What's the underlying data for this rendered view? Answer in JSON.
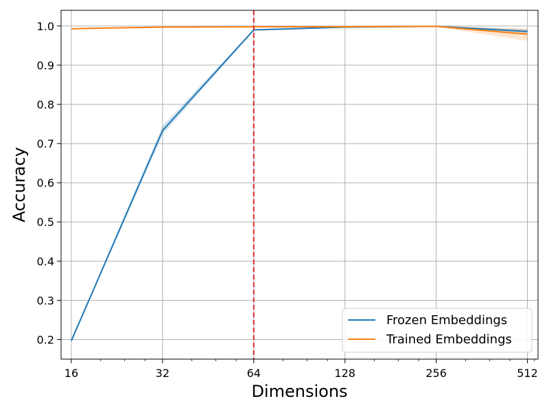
{
  "chart_data": {
    "type": "line",
    "title": "",
    "xlabel": "Dimensions",
    "ylabel": "Accuracy",
    "x_scale": "log2",
    "x": [
      16,
      32,
      64,
      128,
      256,
      512
    ],
    "x_tick_labels": [
      "16",
      "32",
      "64",
      "128",
      "256",
      "512"
    ],
    "xlim": [
      14.8,
      555
    ],
    "ylim": [
      0.15,
      1.04
    ],
    "y_ticks": [
      0.2,
      0.3,
      0.4,
      0.5,
      0.6,
      0.7,
      0.8,
      0.9,
      1.0
    ],
    "y_tick_labels": [
      "0.2",
      "0.3",
      "0.4",
      "0.5",
      "0.6",
      "0.7",
      "0.8",
      "0.9",
      "1.0"
    ],
    "grid": true,
    "legend_position": "lower-right",
    "series": [
      {
        "name": "Frozen Embeddings",
        "color": "#1f77b4",
        "values": [
          0.197,
          0.733,
          0.99,
          0.997,
          0.999,
          0.986
        ],
        "lower": [
          0.196,
          0.723,
          0.988,
          0.996,
          0.998,
          0.98
        ],
        "upper": [
          0.198,
          0.745,
          0.992,
          0.998,
          1.0,
          0.992
        ]
      },
      {
        "name": "Trained Embeddings",
        "color": "#ff7f0e",
        "values": [
          0.993,
          0.997,
          0.998,
          0.998,
          0.999,
          0.979
        ],
        "lower": [
          0.992,
          0.996,
          0.997,
          0.997,
          0.998,
          0.962
        ],
        "upper": [
          0.994,
          0.998,
          0.999,
          0.999,
          1.0,
          0.993
        ]
      }
    ],
    "reference_line": {
      "axis": "x",
      "value": 64,
      "color": "#d62728",
      "style": "dashed"
    }
  }
}
